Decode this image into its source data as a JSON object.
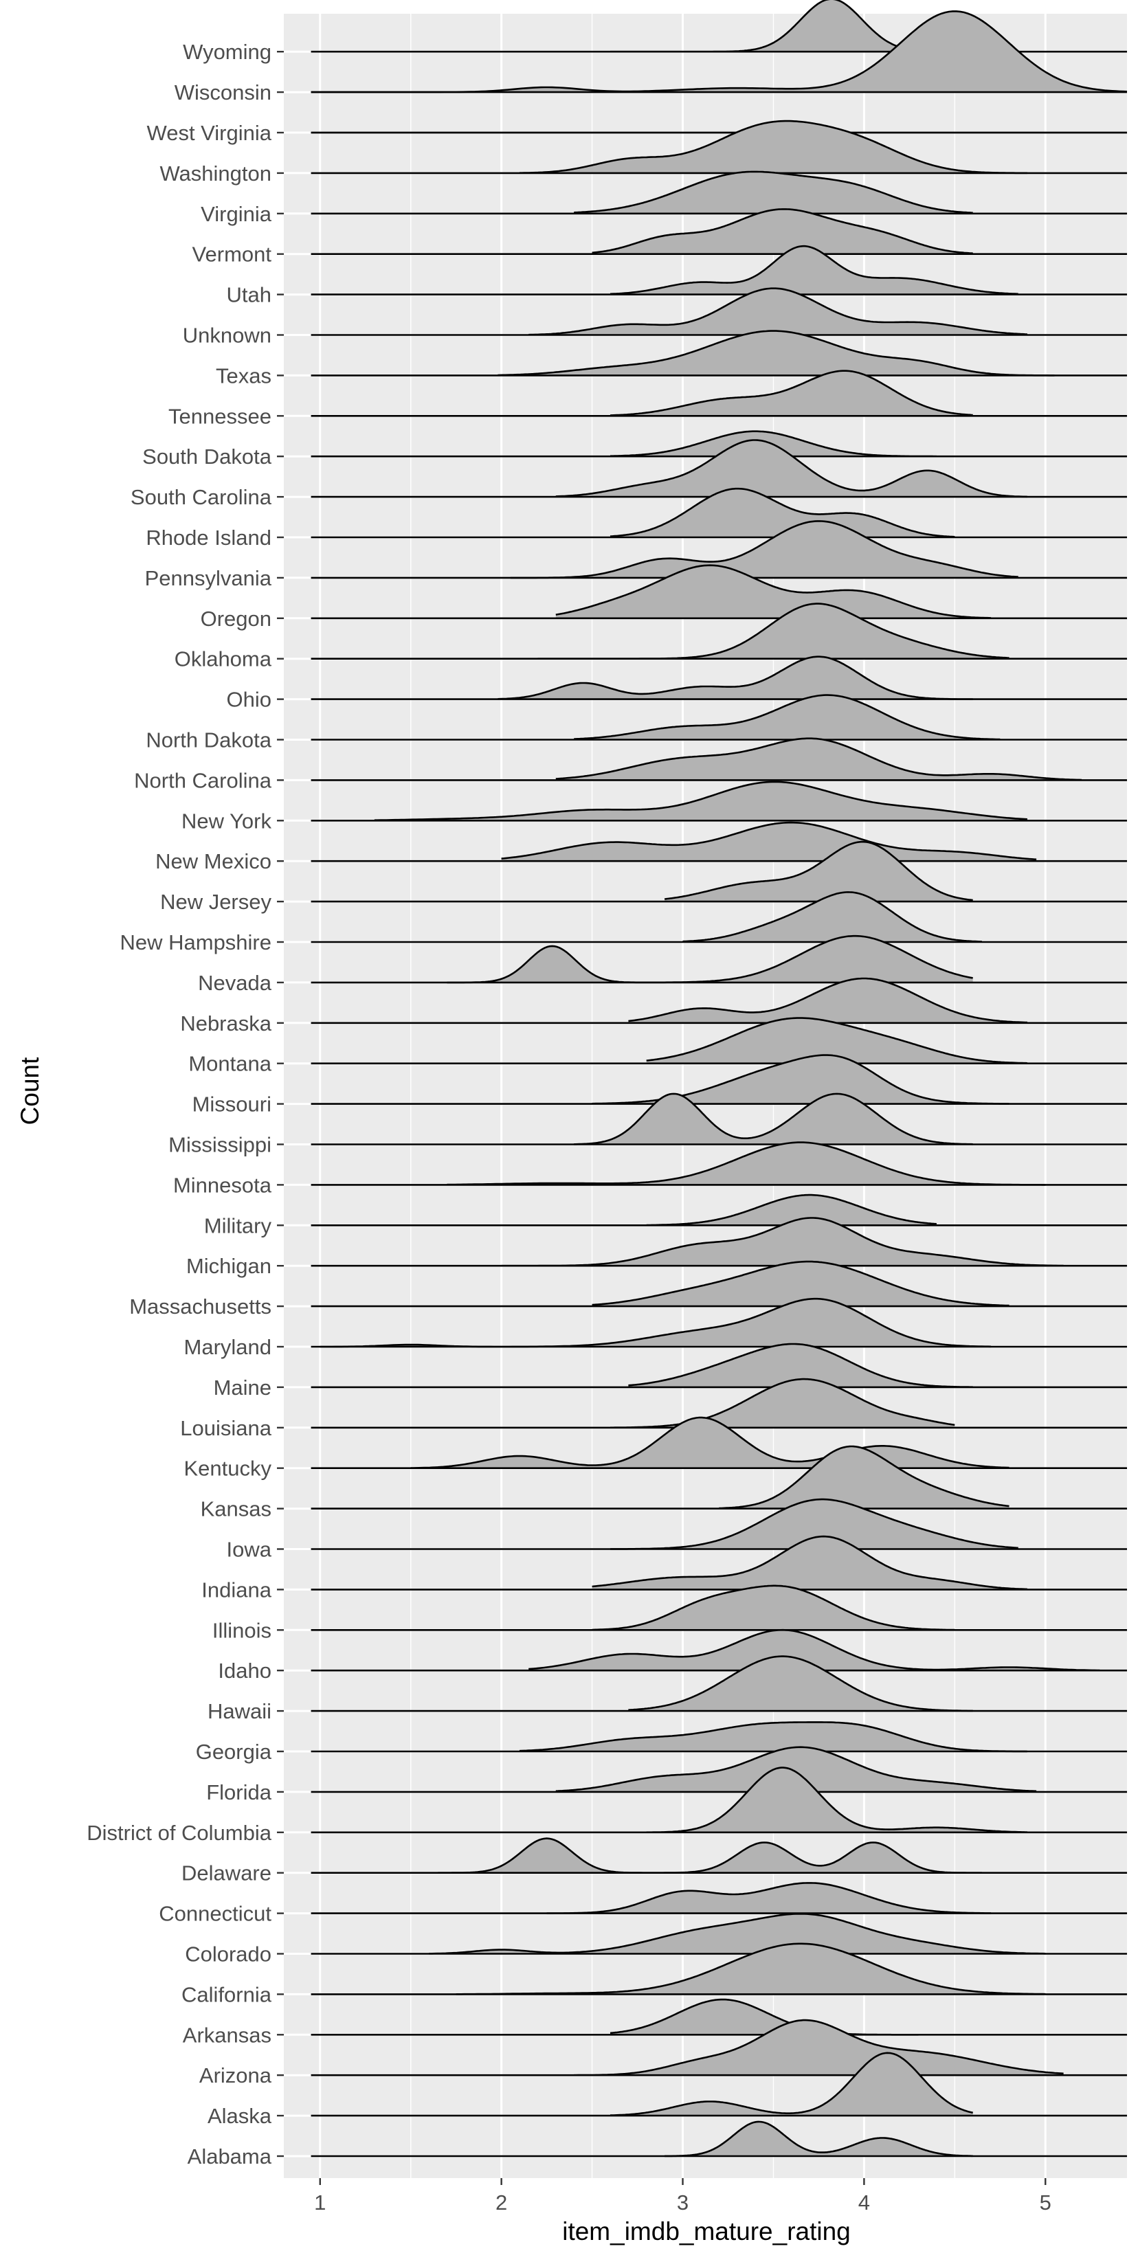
{
  "chart_data": {
    "type": "ridgeline",
    "xlabel": "item_imdb_mature_rating",
    "ylabel": "Count",
    "xlim": [
      0.8,
      5.45
    ],
    "x_ticks": [
      1,
      2,
      3,
      4,
      5
    ],
    "x_tick_labels": [
      "1",
      "2",
      "3",
      "4",
      "5"
    ],
    "grid": true,
    "colors": {
      "panel": "#ebebeb",
      "grid_major": "#ffffff",
      "fill": "#b3b3b3",
      "outline": "#000000",
      "axis_text": "#4d4d4d",
      "title_text": "#000000"
    },
    "series": [
      {
        "name": "Wyoming",
        "range": [
          2.6,
          4.6
        ],
        "peaks": [
          [
            3.82,
            0.17,
            1.3
          ]
        ]
      },
      {
        "name": "Wisconsin",
        "range": [
          0.95,
          5.45
        ],
        "peaks": [
          [
            4.5,
            0.3,
            2.0
          ],
          [
            2.25,
            0.18,
            0.12
          ],
          [
            3.3,
            0.3,
            0.1
          ]
        ]
      },
      {
        "name": "West Virginia",
        "range": [
          0.95,
          5.45
        ],
        "peaks": []
      },
      {
        "name": "Washington",
        "range": [
          2.1,
          4.9
        ],
        "peaks": [
          [
            3.5,
            0.33,
            1.2
          ],
          [
            2.7,
            0.2,
            0.3
          ],
          [
            4.0,
            0.25,
            0.5
          ]
        ]
      },
      {
        "name": "Virginia",
        "range": [
          2.4,
          4.6
        ],
        "peaks": [
          [
            3.35,
            0.35,
            1.0
          ],
          [
            3.95,
            0.25,
            0.5
          ]
        ]
      },
      {
        "name": "Vermont",
        "range": [
          2.5,
          4.6
        ],
        "peaks": [
          [
            3.55,
            0.3,
            1.1
          ],
          [
            2.9,
            0.18,
            0.35
          ],
          [
            4.1,
            0.2,
            0.35
          ]
        ]
      },
      {
        "name": "Utah",
        "range": [
          2.6,
          4.85
        ],
        "peaks": [
          [
            3.66,
            0.17,
            1.15
          ],
          [
            3.1,
            0.2,
            0.3
          ],
          [
            4.2,
            0.25,
            0.4
          ]
        ]
      },
      {
        "name": "Unknown",
        "range": [
          2.15,
          4.9
        ],
        "peaks": [
          [
            3.5,
            0.27,
            1.15
          ],
          [
            2.7,
            0.2,
            0.25
          ],
          [
            4.3,
            0.25,
            0.3
          ]
        ]
      },
      {
        "name": "Texas",
        "range": [
          1.98,
          5.05
        ],
        "peaks": [
          [
            3.5,
            0.38,
            1.1
          ],
          [
            2.6,
            0.25,
            0.15
          ],
          [
            4.3,
            0.2,
            0.25
          ]
        ]
      },
      {
        "name": "Tennessee",
        "range": [
          2.6,
          4.6
        ],
        "peaks": [
          [
            3.9,
            0.25,
            1.1
          ],
          [
            3.25,
            0.25,
            0.4
          ]
        ]
      },
      {
        "name": "South Dakota",
        "range": [
          2.6,
          4.4
        ],
        "peaks": [
          [
            3.4,
            0.27,
            0.62
          ]
        ]
      },
      {
        "name": "South Carolina",
        "range": [
          2.3,
          4.9
        ],
        "peaks": [
          [
            3.4,
            0.25,
            1.4
          ],
          [
            2.8,
            0.2,
            0.25
          ],
          [
            4.35,
            0.17,
            0.65
          ]
        ]
      },
      {
        "name": "Rhode Island",
        "range": [
          2.6,
          4.5
        ],
        "peaks": [
          [
            3.3,
            0.25,
            1.2
          ],
          [
            3.95,
            0.2,
            0.55
          ]
        ]
      },
      {
        "name": "Pennsylvania",
        "range": [
          2.05,
          4.85
        ],
        "peaks": [
          [
            3.75,
            0.3,
            1.4
          ],
          [
            2.9,
            0.2,
            0.45
          ],
          [
            4.4,
            0.2,
            0.25
          ]
        ]
      },
      {
        "name": "Oregon",
        "range": [
          2.3,
          4.7
        ],
        "peaks": [
          [
            3.15,
            0.3,
            1.3
          ],
          [
            3.95,
            0.25,
            0.65
          ],
          [
            2.6,
            0.2,
            0.2
          ]
        ]
      },
      {
        "name": "Oklahoma",
        "range": [
          2.2,
          4.8
        ],
        "peaks": [
          [
            3.72,
            0.25,
            1.3
          ],
          [
            4.2,
            0.25,
            0.35
          ]
        ]
      },
      {
        "name": "Ohio",
        "range": [
          1.98,
          4.6
        ],
        "peaks": [
          [
            3.75,
            0.22,
            1.05
          ],
          [
            2.45,
            0.16,
            0.4
          ],
          [
            3.1,
            0.2,
            0.3
          ]
        ]
      },
      {
        "name": "North Dakota",
        "range": [
          2.4,
          4.75
        ],
        "peaks": [
          [
            3.8,
            0.3,
            1.1
          ],
          [
            3.0,
            0.25,
            0.3
          ]
        ]
      },
      {
        "name": "North Carolina",
        "range": [
          2.3,
          5.2
        ],
        "peaks": [
          [
            3.72,
            0.3,
            1.0
          ],
          [
            3.0,
            0.3,
            0.5
          ],
          [
            4.7,
            0.2,
            0.15
          ]
        ]
      },
      {
        "name": "New York",
        "range": [
          1.3,
          4.9
        ],
        "peaks": [
          [
            3.5,
            0.35,
            0.95
          ],
          [
            2.5,
            0.3,
            0.25
          ],
          [
            4.3,
            0.3,
            0.25
          ],
          [
            1.8,
            0.3,
            0.04
          ]
        ]
      },
      {
        "name": "New Mexico",
        "range": [
          2.0,
          4.95
        ],
        "peaks": [
          [
            3.6,
            0.35,
            0.95
          ],
          [
            2.6,
            0.3,
            0.45
          ],
          [
            4.5,
            0.25,
            0.2
          ]
        ]
      },
      {
        "name": "New Jersey",
        "range": [
          2.9,
          4.6
        ],
        "peaks": [
          [
            4.0,
            0.22,
            1.45
          ],
          [
            3.4,
            0.25,
            0.45
          ]
        ]
      },
      {
        "name": "New Hampshire",
        "range": [
          3.0,
          4.65
        ],
        "peaks": [
          [
            3.93,
            0.23,
            1.2
          ],
          [
            3.5,
            0.2,
            0.3
          ]
        ]
      },
      {
        "name": "Nevada",
        "range": [
          1.7,
          4.6
        ],
        "peaks": [
          [
            3.95,
            0.3,
            1.15
          ],
          [
            2.28,
            0.13,
            0.9
          ]
        ]
      },
      {
        "name": "Nebraska",
        "range": [
          2.7,
          4.9
        ],
        "peaks": [
          [
            4.0,
            0.3,
            1.1
          ],
          [
            3.1,
            0.2,
            0.35
          ]
        ]
      },
      {
        "name": "Montana",
        "range": [
          2.8,
          4.9
        ],
        "peaks": [
          [
            3.62,
            0.35,
            1.1
          ],
          [
            4.2,
            0.25,
            0.3
          ]
        ]
      },
      {
        "name": "Missouri",
        "range": [
          2.5,
          4.8
        ],
        "peaks": [
          [
            3.6,
            0.35,
            0.9
          ],
          [
            3.9,
            0.2,
            0.5
          ]
        ]
      },
      {
        "name": "Mississippi",
        "range": [
          2.4,
          4.6
        ],
        "peaks": [
          [
            2.95,
            0.16,
            1.25
          ],
          [
            3.85,
            0.22,
            1.25
          ]
        ]
      },
      {
        "name": "Minnesota",
        "range": [
          1.7,
          5.0
        ],
        "peaks": [
          [
            3.65,
            0.35,
            1.05
          ],
          [
            2.3,
            0.3,
            0.04
          ]
        ]
      },
      {
        "name": "Military",
        "range": [
          2.8,
          4.4
        ],
        "peaks": [
          [
            3.7,
            0.28,
            0.75
          ]
        ]
      },
      {
        "name": "Michigan",
        "range": [
          2.0,
          5.1
        ],
        "peaks": [
          [
            3.72,
            0.25,
            1.15
          ],
          [
            3.1,
            0.25,
            0.5
          ],
          [
            4.35,
            0.25,
            0.25
          ]
        ]
      },
      {
        "name": "Massachusetts",
        "range": [
          2.5,
          4.8
        ],
        "peaks": [
          [
            3.7,
            0.38,
            1.1
          ],
          [
            3.0,
            0.25,
            0.2
          ]
        ]
      },
      {
        "name": "Maryland",
        "range": [
          1.0,
          4.7
        ],
        "peaks": [
          [
            3.75,
            0.28,
            1.15
          ],
          [
            3.1,
            0.3,
            0.35
          ],
          [
            1.5,
            0.15,
            0.05
          ]
        ]
      },
      {
        "name": "Maine",
        "range": [
          2.7,
          4.6
        ],
        "peaks": [
          [
            3.65,
            0.28,
            1.0
          ],
          [
            3.2,
            0.25,
            0.3
          ]
        ]
      },
      {
        "name": "Louisiana",
        "range": [
          2.6,
          4.5
        ],
        "peaks": [
          [
            3.67,
            0.3,
            1.2
          ],
          [
            4.3,
            0.15,
            0.1
          ]
        ]
      },
      {
        "name": "Kentucky",
        "range": [
          1.5,
          4.8
        ],
        "peaks": [
          [
            3.1,
            0.22,
            1.25
          ],
          [
            2.1,
            0.2,
            0.3
          ],
          [
            4.1,
            0.25,
            0.55
          ]
        ]
      },
      {
        "name": "Kansas",
        "range": [
          3.2,
          4.8
        ],
        "peaks": [
          [
            3.9,
            0.22,
            1.4
          ],
          [
            4.3,
            0.25,
            0.45
          ]
        ]
      },
      {
        "name": "Iowa",
        "range": [
          2.6,
          4.85
        ],
        "peaks": [
          [
            3.75,
            0.3,
            1.2
          ],
          [
            4.3,
            0.25,
            0.3
          ]
        ]
      },
      {
        "name": "Indiana",
        "range": [
          2.5,
          4.9
        ],
        "peaks": [
          [
            3.78,
            0.25,
            1.3
          ],
          [
            3.0,
            0.3,
            0.3
          ],
          [
            4.4,
            0.2,
            0.2
          ]
        ]
      },
      {
        "name": "Illinois",
        "range": [
          2.5,
          4.5
        ],
        "peaks": [
          [
            3.55,
            0.28,
            1.05
          ],
          [
            3.1,
            0.2,
            0.45
          ]
        ]
      },
      {
        "name": "Idaho",
        "range": [
          2.15,
          5.3
        ],
        "peaks": [
          [
            3.55,
            0.28,
            1.0
          ],
          [
            2.7,
            0.25,
            0.4
          ],
          [
            4.8,
            0.2,
            0.08
          ]
        ]
      },
      {
        "name": "Hawaii",
        "range": [
          2.7,
          4.6
        ],
        "peaks": [
          [
            3.55,
            0.3,
            1.35
          ]
        ]
      },
      {
        "name": "Georgia",
        "range": [
          2.1,
          4.9
        ],
        "peaks": [
          [
            3.45,
            0.35,
            0.65
          ],
          [
            4.0,
            0.25,
            0.45
          ],
          [
            2.7,
            0.25,
            0.25
          ]
        ]
      },
      {
        "name": "Florida",
        "range": [
          2.3,
          4.95
        ],
        "peaks": [
          [
            3.65,
            0.3,
            1.1
          ],
          [
            2.9,
            0.25,
            0.35
          ],
          [
            4.4,
            0.25,
            0.2
          ]
        ]
      },
      {
        "name": "District of Columbia",
        "range": [
          2.8,
          4.9
        ],
        "peaks": [
          [
            3.55,
            0.2,
            1.6
          ],
          [
            4.4,
            0.2,
            0.12
          ]
        ]
      },
      {
        "name": "Delaware",
        "range": [
          1.65,
          4.65
        ],
        "peaks": [
          [
            2.25,
            0.14,
            0.85
          ],
          [
            3.45,
            0.15,
            0.75
          ],
          [
            4.05,
            0.14,
            0.75
          ]
        ]
      },
      {
        "name": "Connecticut",
        "range": [
          2.25,
          4.7
        ],
        "peaks": [
          [
            3.7,
            0.3,
            0.75
          ],
          [
            3.0,
            0.2,
            0.5
          ]
        ]
      },
      {
        "name": "Colorado",
        "range": [
          1.6,
          5.0
        ],
        "peaks": [
          [
            3.7,
            0.3,
            0.9
          ],
          [
            3.1,
            0.3,
            0.5
          ],
          [
            2.0,
            0.15,
            0.1
          ],
          [
            4.3,
            0.25,
            0.2
          ]
        ]
      },
      {
        "name": "California",
        "range": [
          1.75,
          5.0
        ],
        "peaks": [
          [
            3.65,
            0.4,
            1.25
          ],
          [
            2.3,
            0.25,
            0.02
          ]
        ]
      },
      {
        "name": "Arkansas",
        "range": [
          2.6,
          4.3
        ],
        "peaks": [
          [
            3.22,
            0.25,
            0.87
          ]
        ]
      },
      {
        "name": "Arizona",
        "range": [
          2.4,
          5.1
        ],
        "peaks": [
          [
            3.65,
            0.25,
            1.25
          ],
          [
            3.1,
            0.2,
            0.3
          ],
          [
            4.3,
            0.35,
            0.55
          ]
        ]
      },
      {
        "name": "Alaska",
        "range": [
          2.6,
          4.6
        ],
        "peaks": [
          [
            4.13,
            0.19,
            1.55
          ],
          [
            3.15,
            0.2,
            0.35
          ]
        ]
      },
      {
        "name": "Alabama",
        "range": [
          2.9,
          4.6
        ],
        "peaks": [
          [
            3.42,
            0.14,
            0.85
          ],
          [
            4.1,
            0.16,
            0.45
          ]
        ]
      }
    ]
  }
}
